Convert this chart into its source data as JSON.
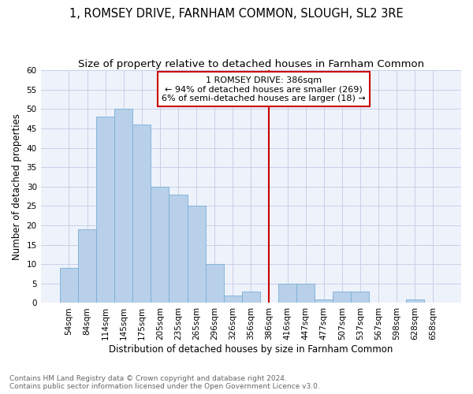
{
  "title1": "1, ROMSEY DRIVE, FARNHAM COMMON, SLOUGH, SL2 3RE",
  "title2": "Size of property relative to detached houses in Farnham Common",
  "xlabel": "Distribution of detached houses by size in Farnham Common",
  "ylabel": "Number of detached properties",
  "categories": [
    "54sqm",
    "84sqm",
    "114sqm",
    "145sqm",
    "175sqm",
    "205sqm",
    "235sqm",
    "265sqm",
    "296sqm",
    "326sqm",
    "356sqm",
    "386sqm",
    "416sqm",
    "447sqm",
    "477sqm",
    "507sqm",
    "537sqm",
    "567sqm",
    "598sqm",
    "628sqm",
    "658sqm"
  ],
  "values": [
    9,
    19,
    48,
    50,
    46,
    30,
    28,
    25,
    10,
    2,
    3,
    0,
    5,
    5,
    1,
    3,
    3,
    0,
    0,
    1,
    0
  ],
  "bar_color": "#b8d0ea",
  "bar_edge_color": "#7aafd4",
  "vline_x": "386sqm",
  "vline_color": "#cc0000",
  "annotation_title": "1 ROMSEY DRIVE: 386sqm",
  "annotation_line1": "← 94% of detached houses are smaller (269)",
  "annotation_line2": "6% of semi-detached houses are larger (18) →",
  "annotation_box_color": "#cc0000",
  "ylim": [
    0,
    60
  ],
  "yticks": [
    0,
    5,
    10,
    15,
    20,
    25,
    30,
    35,
    40,
    45,
    50,
    55,
    60
  ],
  "footer1": "Contains HM Land Registry data © Crown copyright and database right 2024.",
  "footer2": "Contains public sector information licensed under the Open Government Licence v3.0.",
  "bg_color": "#eef2fb",
  "grid_color": "#c8d0e8",
  "title1_fontsize": 10.5,
  "title2_fontsize": 9.5,
  "axis_fontsize": 7.5,
  "ylabel_fontsize": 8.5,
  "xlabel_fontsize": 8.5,
  "annotation_fontsize": 8.0,
  "footer_fontsize": 6.5
}
